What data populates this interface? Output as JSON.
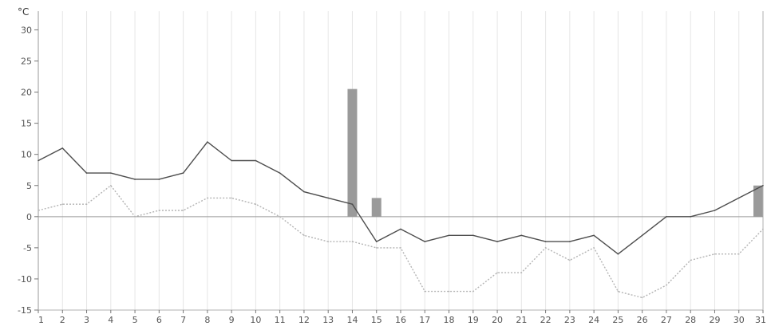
{
  "chart_data": {
    "type": "line",
    "title": "",
    "ylabel": "°C",
    "xlabel": "",
    "grid": "vertical",
    "ylim": [
      -15,
      33
    ],
    "xlim": [
      1,
      31
    ],
    "y_ticks": [
      -15,
      -10,
      -5,
      0,
      5,
      10,
      15,
      20,
      25,
      30
    ],
    "x": [
      1,
      2,
      3,
      4,
      5,
      6,
      7,
      8,
      9,
      10,
      11,
      12,
      13,
      14,
      15,
      16,
      17,
      18,
      19,
      20,
      21,
      22,
      23,
      24,
      25,
      26,
      27,
      28,
      29,
      30,
      31
    ],
    "series": [
      {
        "type": "line",
        "style": "solid",
        "color": "#4d4d4d",
        "values": [
          9,
          11,
          7,
          7,
          6,
          6,
          7,
          12,
          9,
          9,
          7,
          4,
          3,
          2,
          -4,
          -2,
          -4,
          -3,
          -3,
          -4,
          -3,
          -4,
          -4,
          -3,
          -6,
          -3,
          0,
          0,
          1,
          3,
          5
        ]
      },
      {
        "type": "line",
        "style": "dotted",
        "color": "#b3b3b3",
        "values": [
          1,
          2,
          2,
          5,
          0,
          1,
          1,
          3,
          3,
          2,
          0,
          -3,
          -4,
          -4,
          -5,
          -5,
          -12,
          -12,
          -12,
          -9,
          -9,
          -5,
          -7,
          -5,
          -12,
          -13,
          -11,
          -7,
          -6,
          -6,
          -2
        ]
      },
      {
        "type": "bar",
        "color": "#9a9a9a",
        "points": [
          {
            "x": 14,
            "value": 20.5
          },
          {
            "x": 15,
            "value": 3
          },
          {
            "x": 31,
            "value": 5
          }
        ]
      }
    ]
  }
}
